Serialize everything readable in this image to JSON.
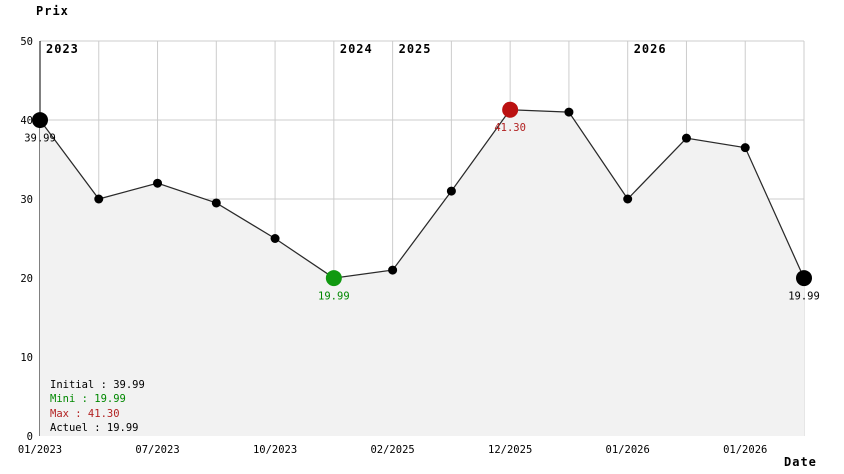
{
  "chart_data": {
    "type": "line",
    "title": "Prix",
    "xlabel": "Date",
    "ylabel": "Prix",
    "ylim": [
      0,
      50
    ],
    "yticks": [
      0,
      10,
      20,
      30,
      40,
      50
    ],
    "grid": true,
    "legend_position": "bottom-left-inside",
    "x_tick_labels": [
      {
        "index": 0,
        "label": "01/2023"
      },
      {
        "index": 2,
        "label": "07/2023"
      },
      {
        "index": 4,
        "label": "10/2023"
      },
      {
        "index": 6,
        "label": "02/2025"
      },
      {
        "index": 8,
        "label": "12/2025"
      },
      {
        "index": 10,
        "label": "01/2026"
      },
      {
        "index": 12,
        "label": "01/2026"
      }
    ],
    "year_markers": [
      {
        "index": 0,
        "label": "2023"
      },
      {
        "index": 5,
        "label": "2024"
      },
      {
        "index": 6,
        "label": "2025"
      },
      {
        "index": 10,
        "label": "2026"
      }
    ],
    "points": [
      {
        "value": 39.99,
        "marker": "large",
        "marker_color": "#000000",
        "label": "39.99",
        "label_color": "#000000"
      },
      {
        "value": 30,
        "marker": "small",
        "marker_color": "#000000"
      },
      {
        "value": 32,
        "marker": "small",
        "marker_color": "#000000"
      },
      {
        "value": 29.5,
        "marker": "small",
        "marker_color": "#000000"
      },
      {
        "value": 25,
        "marker": "small",
        "marker_color": "#000000"
      },
      {
        "value": 19.99,
        "marker": "large",
        "marker_color": "#119911",
        "label": "19.99",
        "label_color": "#008800"
      },
      {
        "value": 21,
        "marker": "small",
        "marker_color": "#000000"
      },
      {
        "value": 31,
        "marker": "small",
        "marker_color": "#000000"
      },
      {
        "value": 41.3,
        "marker": "large",
        "marker_color": "#bb1111",
        "label": "41.30",
        "label_color": "#b22222"
      },
      {
        "value": 41,
        "marker": "small",
        "marker_color": "#000000"
      },
      {
        "value": 30,
        "marker": "small",
        "marker_color": "#000000"
      },
      {
        "value": 37.7,
        "marker": "small",
        "marker_color": "#000000"
      },
      {
        "value": 36.5,
        "marker": "small",
        "marker_color": "#000000"
      },
      {
        "value": 19.99,
        "marker": "large",
        "marker_color": "#000000",
        "label": "19.99",
        "label_color": "#000000"
      }
    ],
    "legend": [
      {
        "label": "Initial",
        "value": "39.99",
        "color": "#000000"
      },
      {
        "label": "Mini",
        "value": "19.99",
        "color": "#008800"
      },
      {
        "label": "Max",
        "value": "41.30",
        "color": "#b22222"
      },
      {
        "label": "Actuel",
        "value": "19.99",
        "color": "#000000"
      }
    ],
    "colors": {
      "grid": "#cccccc",
      "axis": "#000000",
      "area_fill": "#f2f2f2",
      "line": "#2a2a2a",
      "tick_text": "#000000"
    }
  }
}
